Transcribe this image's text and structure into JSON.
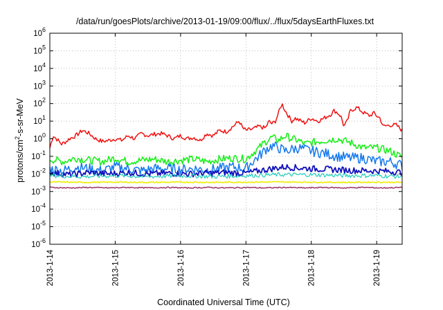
{
  "chart_data": {
    "type": "line",
    "title": "/data/run/goesPlots/archive/2013-01-19/09:00/flux/../flux/5daysEarthFluxes.txt",
    "xlabel": "Coordinated Universal Time (UTC)",
    "ylabel": {
      "prefix": "protons/cm",
      "sup": "2",
      "suffix": "-s-sr-MeV"
    },
    "x_unit": "days",
    "xlim": [
      0,
      5.39
    ],
    "xticks": [
      {
        "x": 0,
        "label": "2013-1-14"
      },
      {
        "x": 1,
        "label": "2013-1-15"
      },
      {
        "x": 2,
        "label": "2013-1-16"
      },
      {
        "x": 3,
        "label": "2013-1-17"
      },
      {
        "x": 4,
        "label": "2013-1-18"
      },
      {
        "x": 5,
        "label": "2013-1-19"
      }
    ],
    "y_scale": "log",
    "ylim": [
      1e-06,
      1000000.0
    ],
    "yticks": [
      {
        "exp": -6,
        "base": "10",
        "sup": "-6"
      },
      {
        "exp": -5,
        "base": "10",
        "sup": "-5"
      },
      {
        "exp": -4,
        "base": "10",
        "sup": "-4"
      },
      {
        "exp": -3,
        "base": "10",
        "sup": "-3"
      },
      {
        "exp": -2,
        "base": "10",
        "sup": "-2"
      },
      {
        "exp": -1,
        "base": "10",
        "sup": "-1"
      },
      {
        "exp": 0,
        "base": "10",
        "sup": "0"
      },
      {
        "exp": 1,
        "base": "10",
        "sup": "1"
      },
      {
        "exp": 2,
        "base": "10",
        "sup": "2"
      },
      {
        "exp": 3,
        "base": "10",
        "sup": "3"
      },
      {
        "exp": 4,
        "base": "10",
        "sup": "4"
      },
      {
        "exp": 5,
        "base": "10",
        "sup": "5"
      },
      {
        "exp": 6,
        "base": "10",
        "sup": "6"
      }
    ],
    "grid": true,
    "legend": "none",
    "series": [
      {
        "color": "#ee1111",
        "width": 1.5,
        "x": [
          0,
          0.05,
          0.1,
          0.18,
          0.25,
          0.3,
          0.4,
          0.5,
          0.6,
          0.7,
          0.8,
          0.9,
          1.0,
          1.1,
          1.2,
          1.3,
          1.4,
          1.5,
          1.6,
          1.7,
          1.8,
          1.9,
          2.0,
          2.1,
          2.2,
          2.3,
          2.4,
          2.5,
          2.6,
          2.7,
          2.8,
          2.9,
          2.95,
          3.0,
          3.1,
          3.2,
          3.3,
          3.35,
          3.4,
          3.45,
          3.5,
          3.55,
          3.6,
          3.65,
          3.7,
          3.75,
          3.8,
          3.9,
          4.0,
          4.1,
          4.2,
          4.3,
          4.35,
          4.4,
          4.45,
          4.5,
          4.55,
          4.6,
          4.7,
          4.8,
          4.9,
          4.95,
          5.0,
          5.05,
          5.1,
          5.2,
          5.3,
          5.39
        ],
        "y": [
          0.3,
          1.5,
          1.0,
          0.5,
          0.7,
          1.0,
          1.5,
          3.0,
          2.0,
          1.0,
          0.7,
          0.8,
          1.0,
          0.8,
          1.5,
          1.0,
          2.0,
          1.5,
          1.8,
          2.0,
          1.5,
          1.0,
          1.5,
          1.0,
          1.2,
          0.8,
          2.0,
          1.5,
          3.0,
          2.5,
          5.0,
          10.0,
          4.0,
          3.0,
          3.5,
          5.0,
          4.0,
          10.0,
          7.0,
          10.0,
          30.0,
          100.0,
          40.0,
          20.0,
          10.0,
          15.0,
          12.0,
          8.0,
          15.0,
          10.0,
          15.0,
          25.0,
          40.0,
          30.0,
          20.0,
          5.0,
          10.0,
          40.0,
          60.0,
          30.0,
          20.0,
          30.0,
          20.0,
          15.0,
          5.0,
          6.0,
          6.0,
          3.0
        ]
      },
      {
        "color": "#11ee11",
        "width": 1.5,
        "x": [
          0,
          0.2,
          0.4,
          0.6,
          0.8,
          1.0,
          1.2,
          1.4,
          1.6,
          1.8,
          2.0,
          2.2,
          2.4,
          2.6,
          2.8,
          3.0,
          3.1,
          3.2,
          3.3,
          3.4,
          3.5,
          3.6,
          3.7,
          3.8,
          3.9,
          4.0,
          4.2,
          4.4,
          4.6,
          4.8,
          5.0,
          5.2,
          5.39
        ],
        "y": [
          0.07,
          0.05,
          0.08,
          0.06,
          0.05,
          0.08,
          0.05,
          0.06,
          0.07,
          0.05,
          0.06,
          0.07,
          0.05,
          0.07,
          0.08,
          0.07,
          0.15,
          0.3,
          0.7,
          1.2,
          0.8,
          1.5,
          1.0,
          0.8,
          0.5,
          0.6,
          0.8,
          1.0,
          0.6,
          0.3,
          0.3,
          0.2,
          0.09
        ]
      },
      {
        "color": "#1177ee",
        "width": 1.5,
        "x": [
          0,
          0.2,
          0.4,
          0.6,
          0.8,
          1.0,
          1.2,
          1.4,
          1.6,
          1.8,
          2.0,
          2.2,
          2.4,
          2.6,
          2.8,
          3.0,
          3.1,
          3.2,
          3.3,
          3.4,
          3.5,
          3.6,
          3.7,
          3.8,
          4.0,
          4.2,
          4.4,
          4.6,
          4.8,
          5.0,
          5.2,
          5.39
        ],
        "y": [
          0.02,
          0.015,
          0.025,
          0.02,
          0.015,
          0.025,
          0.02,
          0.015,
          0.02,
          0.02,
          0.018,
          0.02,
          0.017,
          0.02,
          0.025,
          0.02,
          0.05,
          0.1,
          0.25,
          0.4,
          0.3,
          0.2,
          0.25,
          0.3,
          0.2,
          0.15,
          0.1,
          0.08,
          0.08,
          0.05,
          0.05,
          0.03
        ]
      },
      {
        "color": "#1111bb",
        "width": 1.8,
        "x": [
          0,
          0.3,
          0.6,
          0.9,
          1.2,
          1.5,
          1.8,
          2.1,
          2.4,
          2.7,
          3.0,
          3.2,
          3.4,
          3.6,
          3.8,
          4.0,
          4.3,
          4.6,
          4.9,
          5.2,
          5.39
        ],
        "y": [
          0.012,
          0.009,
          0.012,
          0.01,
          0.012,
          0.01,
          0.011,
          0.01,
          0.011,
          0.012,
          0.011,
          0.015,
          0.02,
          0.025,
          0.022,
          0.02,
          0.018,
          0.016,
          0.015,
          0.014,
          0.012
        ]
      },
      {
        "color": "#22ccbb",
        "width": 1.2,
        "x": [
          0,
          0.5,
          1.0,
          1.5,
          2.0,
          2.5,
          3.0,
          3.5,
          4.0,
          4.5,
          5.0,
          5.39
        ],
        "y": [
          0.008,
          0.007,
          0.008,
          0.007,
          0.008,
          0.007,
          0.008,
          0.009,
          0.009,
          0.008,
          0.008,
          0.007
        ]
      },
      {
        "color": "#eeee11",
        "width": 1.8,
        "x": [
          0,
          0.5,
          1.0,
          1.5,
          2.0,
          2.5,
          3.0,
          3.5,
          4.0,
          4.5,
          5.0,
          5.39
        ],
        "y": [
          0.0035,
          0.0033,
          0.0034,
          0.0033,
          0.0034,
          0.0033,
          0.0034,
          0.0035,
          0.0034,
          0.0033,
          0.0034,
          0.0033
        ]
      },
      {
        "color": "#993366",
        "width": 1.5,
        "x": [
          0,
          0.3,
          0.6,
          0.9,
          1.2,
          1.5,
          1.8,
          2.1,
          2.4,
          2.7,
          3.0,
          3.3,
          3.6,
          3.9,
          4.2,
          4.5,
          4.8,
          5.1,
          5.39
        ],
        "y": [
          0.0017,
          0.0016,
          0.0017,
          0.0016,
          0.0017,
          0.0016,
          0.0017,
          0.0016,
          0.0017,
          0.0016,
          0.0017,
          0.0016,
          0.0017,
          0.0016,
          0.0017,
          0.0016,
          0.0017,
          0.0016,
          0.0017
        ]
      }
    ]
  }
}
